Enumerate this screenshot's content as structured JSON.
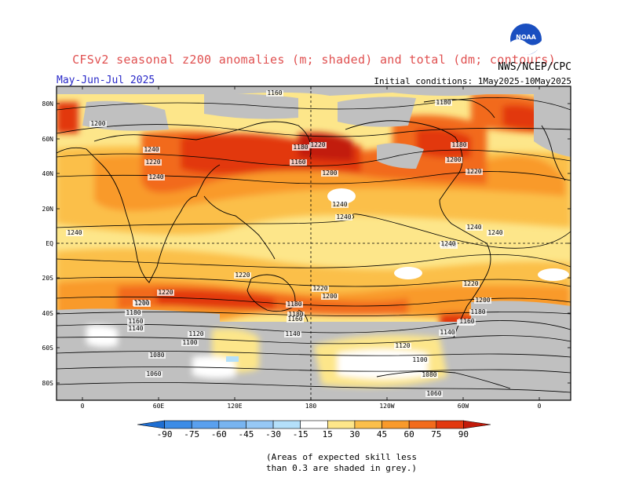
{
  "title": "CFSv2 seasonal z200 anomalies (m; shaded) and total (dm; contours)",
  "organization": "NWS/NCEP/CPC",
  "season": "May-Jun-Jul 2025",
  "initial_conditions": "Initial conditions: 1May2025-10May2025",
  "logo_text": "NOAA",
  "skill_note": [
    "(Areas of expected skill less",
    "than 0.3 are shaded in grey.)"
  ],
  "lat_ticks": [
    "80N",
    "60N",
    "40N",
    "20N",
    "EQ",
    "20S",
    "40S",
    "60S",
    "80S"
  ],
  "lon_ticks": [
    "0",
    "60E",
    "120E",
    "180",
    "120W",
    "60W",
    "0"
  ],
  "colorbar": {
    "labels": [
      "-90",
      "-75",
      "-60",
      "-45",
      "-30",
      "-15",
      "15",
      "30",
      "45",
      "60",
      "75",
      "90"
    ],
    "colors": [
      "#1e6ed2",
      "#3c8ce6",
      "#5aa0ee",
      "#78b4f0",
      "#96c8f5",
      "#b4e0fa",
      "#ffffff",
      "#fde68a",
      "#fbbf4a",
      "#f99a2b",
      "#f26b1c",
      "#e2380f",
      "#c21a0a"
    ]
  },
  "colors": {
    "grey_skill": "#c0c0c0",
    "anom_15": "#fde68a",
    "anom_30": "#fbbf4a",
    "anom_45": "#f99a2b",
    "anom_60": "#f26b1c",
    "anom_75": "#e2380f",
    "anom_90": "#c21a0a",
    "neg_15": "#b4e0fa"
  },
  "contour_labels": [
    "1160",
    "1180",
    "1200",
    "1220",
    "1240",
    "1240",
    "1240",
    "1240",
    "1240",
    "1220",
    "1200",
    "1180",
    "1160",
    "1140",
    "1120",
    "1100",
    "1080",
    "1060",
    "1160",
    "1180",
    "1200",
    "1220",
    "1240",
    "1220",
    "1200",
    "1180",
    "1160",
    "1140",
    "1120",
    "1100",
    "1080",
    "1060",
    "1180",
    "1200",
    "1220",
    "1180",
    "1200",
    "1220",
    "1240",
    "1240",
    "1240",
    "1220",
    "1200",
    "1180",
    "1160",
    "1140",
    "1160"
  ]
}
